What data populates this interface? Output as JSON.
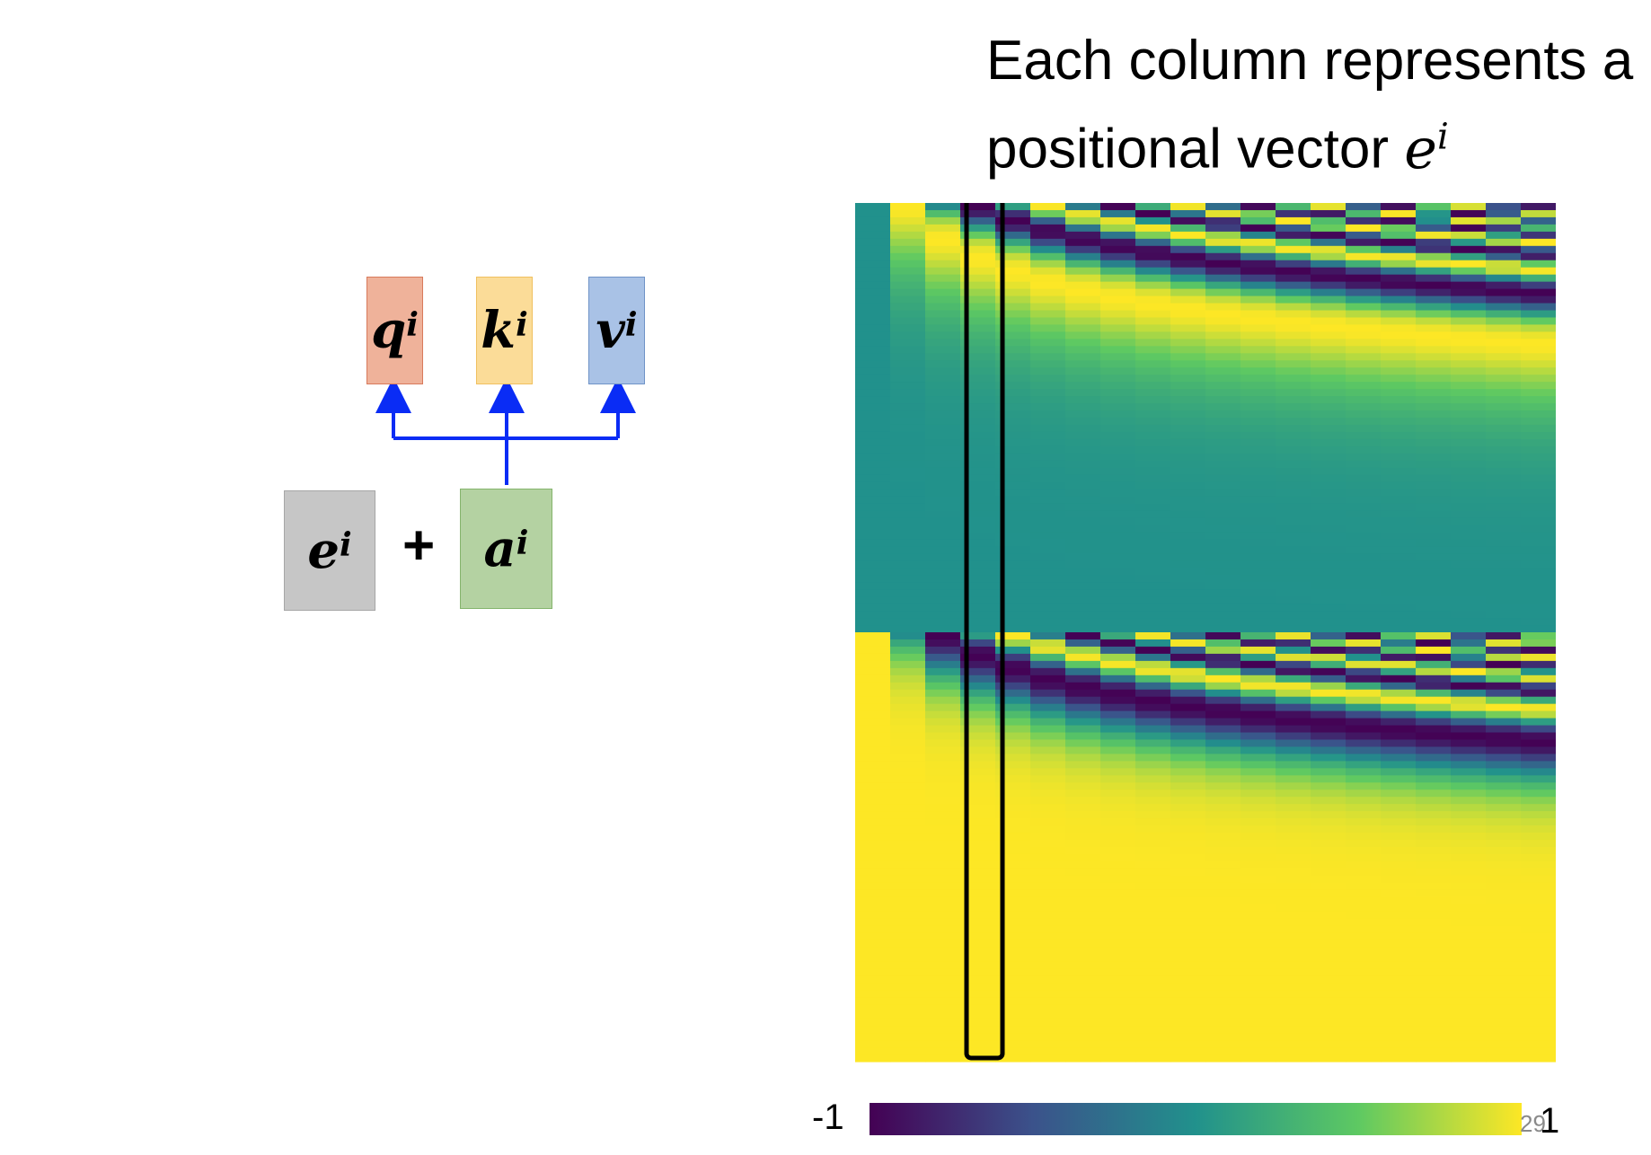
{
  "caption": {
    "line1": "Each column represents a",
    "line2": "positional vector",
    "var_base": "e",
    "var_sup": "i"
  },
  "boxes": {
    "q": {
      "base": "q",
      "sup": "i",
      "color": "#efb29a"
    },
    "k": {
      "base": "k",
      "sup": "i",
      "color": "#fbdc98"
    },
    "v": {
      "base": "v",
      "sup": "i",
      "color": "#a9c2e6"
    },
    "e": {
      "base": "e",
      "sup": "i",
      "color": "#c6c6c6"
    },
    "a": {
      "base": "a",
      "sup": "i",
      "color": "#b4d2a2"
    }
  },
  "operator": "+",
  "connector_color": "#0a2cf5",
  "colorbar": {
    "min_label": "-1",
    "max_label": "1",
    "colormap": "viridis"
  },
  "heatmap": {
    "columns": 20,
    "highlighted_column": 4,
    "highlight_color": "#000000"
  },
  "page_number": "29"
}
